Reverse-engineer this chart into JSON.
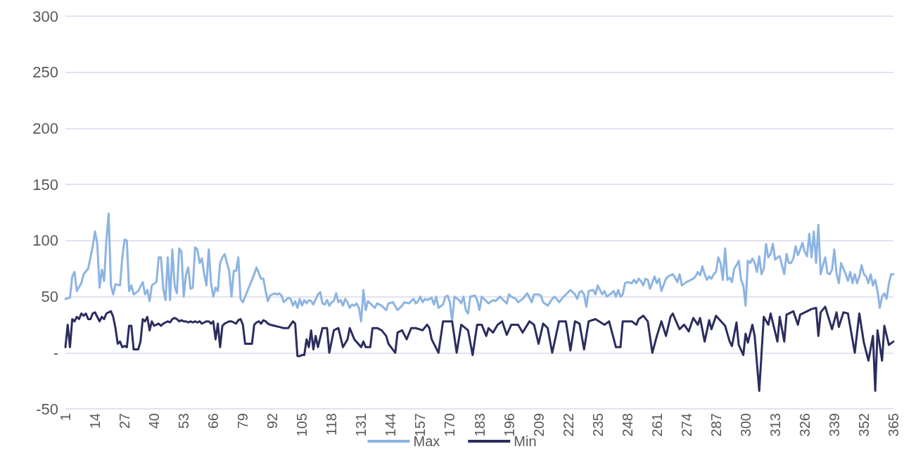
{
  "chart_data": {
    "type": "line",
    "xlim": [
      1,
      365
    ],
    "xticks": [
      1,
      14,
      27,
      40,
      53,
      66,
      79,
      92,
      105,
      118,
      131,
      144,
      157,
      170,
      183,
      196,
      209,
      222,
      235,
      248,
      261,
      274,
      287,
      300,
      313,
      326,
      339,
      352,
      365
    ],
    "ylim": [
      -50,
      300
    ],
    "yticks": [
      -50,
      {
        "value": 0,
        "label": "-"
      },
      50,
      100,
      150,
      200,
      250,
      300
    ],
    "grid": "y",
    "legend": "bottom",
    "marker": "none",
    "series": [
      {
        "name": "Max",
        "color": "#8db4e2",
        "x": [
          1,
          3,
          4,
          5,
          6,
          8,
          9,
          11,
          13,
          14,
          15,
          16,
          17,
          18,
          19,
          20,
          21,
          22,
          23,
          25,
          26,
          27,
          28,
          29,
          30,
          31,
          33,
          35,
          36,
          37,
          38,
          39,
          41,
          42,
          43,
          44,
          45,
          46,
          47,
          48,
          49,
          50,
          51,
          52,
          53,
          54,
          55,
          56,
          57,
          58,
          59,
          60,
          61,
          62,
          63,
          64,
          65,
          66,
          67,
          68,
          69,
          70,
          71,
          72,
          73,
          74,
          75,
          76,
          77,
          78,
          79,
          81,
          83,
          84,
          85,
          86,
          87,
          88,
          89,
          90,
          91,
          93,
          94,
          95,
          96,
          97,
          99,
          100,
          101,
          102,
          103,
          104,
          105,
          106,
          107,
          108,
          109,
          110,
          112,
          113,
          114,
          115,
          116,
          117,
          118,
          119,
          120,
          121,
          122,
          123,
          124,
          125,
          126,
          127,
          128,
          129,
          130,
          131,
          132,
          133,
          134,
          135,
          137,
          138,
          140,
          142,
          143,
          145,
          147,
          149,
          150,
          152,
          154,
          155,
          156,
          157,
          158,
          159,
          160,
          162,
          163,
          164,
          165,
          167,
          168,
          169,
          170,
          171,
          172,
          174,
          175,
          176,
          177,
          178,
          179,
          181,
          182,
          183,
          184,
          185,
          187,
          189,
          190,
          192,
          193,
          195,
          196,
          197,
          199,
          200,
          202,
          204,
          206,
          207,
          209,
          210,
          211,
          213,
          215,
          216,
          217,
          218,
          220,
          222,
          223,
          225,
          226,
          227,
          228,
          229,
          230,
          231,
          233,
          234,
          235,
          236,
          237,
          238,
          239,
          241,
          242,
          243,
          244,
          245,
          246,
          247,
          248,
          250,
          251,
          252,
          253,
          254,
          255,
          256,
          257,
          258,
          260,
          261,
          262,
          263,
          265,
          266,
          268,
          269,
          270,
          271,
          272,
          274,
          276,
          277,
          278,
          279,
          280,
          281,
          282,
          283,
          284,
          285,
          286,
          287,
          288,
          289,
          290,
          291,
          292,
          293,
          294,
          295,
          296,
          297,
          298,
          299,
          300,
          301,
          302,
          303,
          304,
          305,
          306,
          307,
          308,
          309,
          310,
          311,
          312,
          313,
          314,
          315,
          316,
          317,
          318,
          319,
          320,
          321,
          322,
          323,
          324,
          325,
          326,
          327,
          328,
          329,
          330,
          331,
          332,
          333,
          334,
          335,
          336,
          337,
          338,
          339,
          340,
          341,
          342,
          343,
          344,
          345,
          346,
          347,
          348,
          349,
          350,
          351,
          352,
          353,
          354,
          355,
          356,
          357,
          358,
          359,
          360,
          361,
          362,
          363,
          364,
          365
        ],
        "values": [
          48,
          49,
          68,
          72,
          55,
          62,
          70,
          75,
          95,
          108,
          97,
          58,
          74,
          64,
          100,
          124,
          60,
          52,
          61,
          60,
          85,
          101,
          100,
          55,
          60,
          52,
          55,
          63,
          52,
          56,
          46,
          60,
          63,
          85,
          85,
          57,
          47,
          85,
          47,
          92,
          60,
          53,
          93,
          90,
          50,
          70,
          76,
          57,
          58,
          94,
          92,
          80,
          84,
          70,
          60,
          92,
          62,
          50,
          58,
          55,
          80,
          85,
          88,
          80,
          73,
          50,
          73,
          73,
          85,
          48,
          45,
          55,
          65,
          70,
          76,
          71,
          66,
          66,
          55,
          46,
          51,
          53,
          52,
          53,
          51,
          45,
          49,
          48,
          42,
          46,
          40,
          48,
          42,
          47,
          44,
          47,
          46,
          43,
          52,
          54,
          44,
          43,
          47,
          42,
          45,
          46,
          53,
          45,
          47,
          42,
          48,
          45,
          40,
          43,
          42,
          44,
          40,
          28,
          56,
          38,
          46,
          44,
          40,
          44,
          42,
          38,
          44,
          45,
          38,
          42,
          45,
          44,
          48,
          44,
          46,
          50,
          45,
          48,
          47,
          49,
          43,
          50,
          40,
          43,
          50,
          51,
          45,
          28,
          50,
          47,
          44,
          50,
          38,
          35,
          50,
          51,
          47,
          38,
          50,
          48,
          44,
          47,
          46,
          50,
          48,
          44,
          52,
          50,
          48,
          45,
          48,
          53,
          45,
          52,
          52,
          51,
          45,
          42,
          48,
          50,
          48,
          45,
          50,
          54,
          56,
          52,
          48,
          54,
          55,
          52,
          41,
          55,
          56,
          52,
          60,
          56,
          52,
          55,
          50,
          53,
          55,
          50,
          56,
          50,
          52,
          62,
          63,
          62,
          65,
          62,
          66,
          64,
          60,
          66,
          65,
          57,
          68,
          62,
          66,
          55,
          66,
          68,
          70,
          67,
          63,
          70,
          60,
          63,
          65,
          66,
          68,
          72,
          69,
          77,
          70,
          65,
          68,
          66,
          70,
          72,
          85,
          80,
          65,
          93,
          65,
          67,
          63,
          75,
          78,
          82,
          65,
          60,
          42,
          82,
          80,
          84,
          80,
          72,
          86,
          70,
          75,
          97,
          85,
          88,
          97,
          83,
          85,
          86,
          78,
          70,
          88,
          80,
          80,
          84,
          95,
          87,
          92,
          98,
          90,
          86,
          106,
          85,
          108,
          80,
          114,
          70,
          78,
          85,
          71,
          70,
          74,
          92,
          70,
          62,
          80,
          75,
          70,
          64,
          72,
          62,
          70,
          62,
          68,
          78,
          70,
          68,
          62,
          70,
          60,
          65,
          55,
          40,
          50,
          53,
          48,
          62,
          70,
          70
        ]
      },
      {
        "name": "Min",
        "color": "#2b2d5e",
        "x": [
          1,
          2,
          3,
          4,
          5,
          6,
          7,
          8,
          9,
          10,
          11,
          12,
          13,
          14,
          15,
          16,
          17,
          18,
          19,
          20,
          21,
          22,
          23,
          24,
          25,
          26,
          27,
          28,
          29,
          30,
          31,
          32,
          33,
          34,
          35,
          36,
          37,
          38,
          39,
          40,
          41,
          42,
          43,
          44,
          45,
          46,
          47,
          48,
          49,
          50,
          51,
          52,
          53,
          54,
          55,
          56,
          57,
          58,
          59,
          60,
          61,
          62,
          63,
          64,
          65,
          66,
          67,
          68,
          69,
          70,
          71,
          72,
          73,
          74,
          75,
          76,
          77,
          78,
          79,
          80,
          81,
          82,
          83,
          84,
          85,
          86,
          87,
          88,
          89,
          90,
          91,
          93,
          95,
          97,
          99,
          101,
          102,
          103,
          104,
          105,
          106,
          107,
          108,
          109,
          110,
          111,
          112,
          114,
          116,
          117,
          119,
          121,
          123,
          125,
          126,
          128,
          131,
          132,
          133,
          135,
          136,
          138,
          140,
          142,
          143,
          146,
          147,
          149,
          151,
          153,
          155,
          158,
          160,
          161,
          162,
          165,
          167,
          169,
          171,
          173,
          175,
          178,
          180,
          182,
          184,
          186,
          187,
          189,
          191,
          193,
          195,
          197,
          200,
          202,
          205,
          207,
          209,
          211,
          213,
          215,
          218,
          221,
          223,
          225,
          227,
          229,
          231,
          234,
          238,
          240,
          243,
          245,
          246,
          250,
          252,
          253,
          255,
          257,
          259,
          261,
          263,
          265,
          267,
          268,
          269,
          271,
          273,
          275,
          277,
          279,
          280,
          282,
          284,
          285,
          287,
          291,
          293,
          294,
          296,
          297,
          299,
          300,
          301,
          303,
          304,
          306,
          308,
          310,
          311,
          314,
          315,
          317,
          318,
          321,
          323,
          324,
          327,
          329,
          331,
          332,
          333,
          335,
          338,
          340,
          341,
          343,
          345,
          348,
          350,
          352,
          354,
          356,
          357,
          358,
          360,
          361,
          363,
          365
        ],
        "values": [
          5,
          25,
          5,
          30,
          28,
          32,
          30,
          35,
          33,
          35,
          30,
          30,
          35,
          36,
          32,
          28,
          32,
          30,
          35,
          36,
          37,
          32,
          22,
          8,
          10,
          5,
          6,
          5,
          24,
          24,
          3,
          3,
          3,
          10,
          30,
          28,
          32,
          20,
          28,
          24,
          25,
          26,
          24,
          26,
          27,
          28,
          27,
          30,
          31,
          30,
          28,
          29,
          28,
          28,
          27,
          28,
          27,
          28,
          27,
          28,
          26,
          27,
          28,
          28,
          26,
          28,
          12,
          26,
          5,
          24,
          26,
          27,
          28,
          28,
          27,
          26,
          29,
          30,
          25,
          8,
          8,
          8,
          8,
          25,
          27,
          28,
          26,
          29,
          28,
          26,
          25,
          24,
          23,
          22,
          22,
          28,
          26,
          -3,
          -3,
          -2,
          -2,
          12,
          5,
          20,
          3,
          15,
          5,
          22,
          22,
          0,
          20,
          22,
          5,
          12,
          22,
          12,
          5,
          10,
          5,
          5,
          22,
          22,
          20,
          15,
          8,
          0,
          18,
          20,
          12,
          22,
          22,
          20,
          25,
          22,
          12,
          0,
          28,
          28,
          28,
          0,
          25,
          20,
          -2,
          25,
          25,
          15,
          22,
          18,
          25,
          28,
          16,
          25,
          25,
          18,
          28,
          25,
          8,
          26,
          22,
          0,
          28,
          28,
          2,
          28,
          26,
          3,
          28,
          30,
          25,
          28,
          5,
          5,
          28,
          28,
          25,
          30,
          33,
          28,
          0,
          15,
          28,
          15,
          32,
          35,
          30,
          21,
          25,
          19,
          31,
          25,
          31,
          10,
          29,
          21,
          33,
          24,
          10,
          6,
          27,
          7,
          -2,
          17,
          9,
          25,
          15,
          -34,
          32,
          25,
          35,
          10,
          32,
          10,
          34,
          37,
          25,
          34,
          37,
          39,
          40,
          15,
          36,
          41,
          21,
          36,
          23,
          36,
          35,
          0,
          35,
          9,
          -7,
          15,
          -34,
          20,
          -7,
          24,
          7,
          10
        ]
      }
    ]
  }
}
